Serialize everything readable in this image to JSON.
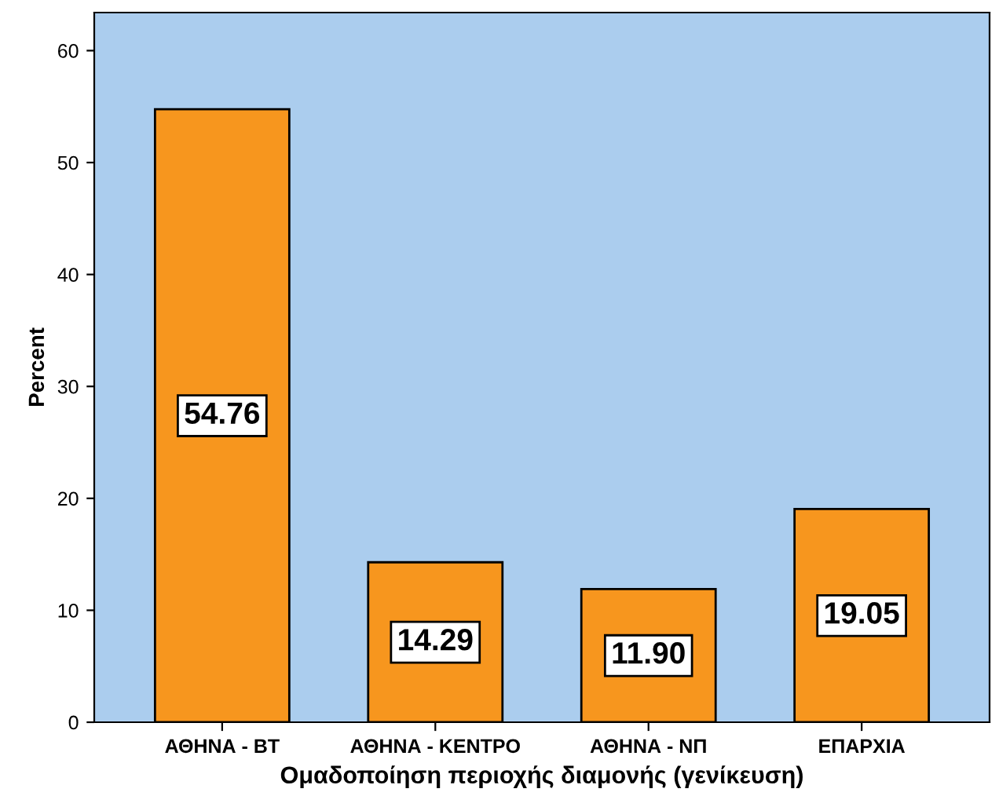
{
  "chart_data": {
    "type": "bar",
    "xlabel": "Ομαδοποίηση περιοχής διαμονής (γενίκευση)",
    "ylabel": "Percent",
    "categories": [
      "ΑΘΗΝΑ - ΒΤ",
      "ΑΘΗΝΑ - ΚΕΝΤΡΟ",
      "ΑΘΗΝΑ - ΝΠ",
      "ΕΠΑΡΧΙΑ"
    ],
    "values": [
      54.76,
      14.29,
      11.9,
      19.05
    ],
    "color": "#f7961e",
    "ylim": [
      0,
      63.4
    ],
    "yticks": [
      0,
      10,
      20,
      30,
      40,
      50,
      60
    ],
    "grid": false,
    "value_labels": [
      "54.76",
      "14.29",
      "11.90",
      "19.05"
    ]
  }
}
